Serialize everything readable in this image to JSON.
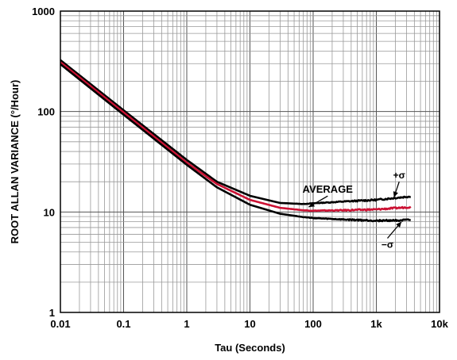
{
  "chart_data": {
    "type": "line",
    "xlabel": "Tau (Seconds)",
    "ylabel": "ROOT ALLAN VARIANCE (°/Hour)",
    "x_scale": "log",
    "y_scale": "log",
    "xlim": [
      0.01,
      10000
    ],
    "ylim": [
      1,
      1000
    ],
    "grid": true,
    "x_ticks": [
      {
        "value": 0.01,
        "label": "0.01"
      },
      {
        "value": 0.1,
        "label": "0.1"
      },
      {
        "value": 1,
        "label": "1"
      },
      {
        "value": 10,
        "label": "10"
      },
      {
        "value": 100,
        "label": "100"
      },
      {
        "value": 1000,
        "label": "1k"
      },
      {
        "value": 10000,
        "label": "10k"
      }
    ],
    "y_ticks": [
      {
        "value": 1,
        "label": "1"
      },
      {
        "value": 10,
        "label": "10"
      },
      {
        "value": 100,
        "label": "100"
      },
      {
        "value": 1000,
        "label": "1000"
      }
    ],
    "series": [
      {
        "name": "+σ",
        "color": "#000000",
        "x": [
          0.01,
          0.1,
          1,
          3,
          10,
          30,
          70,
          100,
          300,
          1000,
          3500
        ],
        "y": [
          325,
          103,
          33,
          20,
          14.5,
          12.3,
          12,
          12.2,
          12.7,
          13.2,
          14.3
        ]
      },
      {
        "name": "AVERAGE",
        "color": "#cc1133",
        "x": [
          0.01,
          0.1,
          1,
          3,
          10,
          30,
          70,
          100,
          300,
          1000,
          3500
        ],
        "y": [
          310,
          98,
          31,
          19,
          13.2,
          11,
          10.4,
          10.3,
          10.4,
          10.6,
          11.2
        ]
      },
      {
        "name": "−σ",
        "color": "#000000",
        "x": [
          0.01,
          0.1,
          1,
          3,
          10,
          30,
          70,
          100,
          300,
          1000,
          3500
        ],
        "y": [
          296,
          93,
          29.5,
          17.6,
          11.8,
          9.6,
          8.9,
          8.7,
          8.4,
          8.2,
          8.3
        ]
      }
    ],
    "annotations": [
      {
        "text": "AVERAGE",
        "x": 170,
        "y": 15.5,
        "target_x": 85,
        "target_y": 11.2
      },
      {
        "text": "+σ",
        "x": 2300,
        "y": 21.5,
        "target_x": 1900,
        "target_y": 14.0
      },
      {
        "text": "−σ",
        "x": 1500,
        "y": 4.4,
        "target_x": 2500,
        "target_y": 8.0
      }
    ]
  }
}
